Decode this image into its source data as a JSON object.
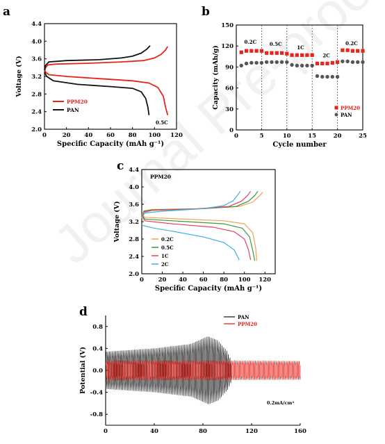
{
  "watermark": "Journal Pre-proofs",
  "chart_data": [
    {
      "panel": "a",
      "type": "line",
      "xlabel": "Specific Capacity (mAh g⁻¹)",
      "ylabel": "Voltage (V)",
      "xlim": [
        0,
        120
      ],
      "ylim": [
        2.0,
        4.4
      ],
      "xticks": [
        0,
        20,
        40,
        60,
        80,
        100,
        120
      ],
      "yticks": [
        2.0,
        2.4,
        2.8,
        3.2,
        3.6,
        4.0,
        4.4
      ],
      "annotation": "0.5C",
      "legend_position": "bottom-left",
      "series": [
        {
          "name": "PPM20",
          "color": "#e8231a",
          "charge": [
            [
              0,
              3.3
            ],
            [
              1,
              3.4
            ],
            [
              3,
              3.46
            ],
            [
              10,
              3.48
            ],
            [
              40,
              3.5
            ],
            [
              70,
              3.53
            ],
            [
              90,
              3.56
            ],
            [
              100,
              3.62
            ],
            [
              106,
              3.7
            ],
            [
              110,
              3.8
            ],
            [
              112,
              3.88
            ]
          ],
          "discharge": [
            [
              0,
              3.36
            ],
            [
              1,
              3.3
            ],
            [
              4,
              3.24
            ],
            [
              20,
              3.2
            ],
            [
              50,
              3.15
            ],
            [
              80,
              3.1
            ],
            [
              95,
              3.05
            ],
            [
              103,
              2.95
            ],
            [
              108,
              2.75
            ],
            [
              110,
              2.5
            ],
            [
              112,
              2.32
            ]
          ]
        },
        {
          "name": "PAN",
          "color": "#111111",
          "charge": [
            [
              0,
              3.34
            ],
            [
              1,
              3.45
            ],
            [
              4,
              3.53
            ],
            [
              20,
              3.56
            ],
            [
              50,
              3.58
            ],
            [
              70,
              3.62
            ],
            [
              80,
              3.66
            ],
            [
              88,
              3.73
            ],
            [
              93,
              3.82
            ],
            [
              96,
              3.9
            ]
          ],
          "discharge": [
            [
              0,
              3.3
            ],
            [
              2,
              3.2
            ],
            [
              8,
              3.1
            ],
            [
              30,
              3.02
            ],
            [
              60,
              2.97
            ],
            [
              80,
              2.93
            ],
            [
              88,
              2.85
            ],
            [
              92,
              2.7
            ],
            [
              94,
              2.5
            ],
            [
              95,
              2.32
            ]
          ]
        }
      ]
    },
    {
      "panel": "b",
      "type": "scatter",
      "xlabel": "Cycle number",
      "ylabel": "Capacity (mAh/g)",
      "xlim": [
        0,
        25
      ],
      "ylim": [
        0,
        150
      ],
      "xticks": [
        0,
        5,
        10,
        15,
        20,
        25
      ],
      "yticks": [
        0,
        30,
        60,
        90,
        120,
        150
      ],
      "rate_labels": [
        {
          "text": "0.2C",
          "x": 2.8,
          "y": 123
        },
        {
          "text": "0.5C",
          "x": 7.8,
          "y": 120
        },
        {
          "text": "1C",
          "x": 12.7,
          "y": 115
        },
        {
          "text": "2C",
          "x": 17.8,
          "y": 104
        },
        {
          "text": "0.2C",
          "x": 22.8,
          "y": 121
        }
      ],
      "dividers": [
        5,
        10,
        15,
        20
      ],
      "series": [
        {
          "name": "PPM20",
          "color": "#e8231a",
          "marker": "square",
          "x": [
            1,
            2,
            3,
            4,
            5,
            6,
            7,
            8,
            9,
            10,
            11,
            12,
            13,
            14,
            15,
            16,
            17,
            18,
            19,
            20,
            21,
            22,
            23,
            24,
            25
          ],
          "values": [
            111,
            113,
            113,
            113,
            113,
            110,
            110,
            110,
            110,
            109,
            107,
            107,
            107,
            107,
            107,
            95,
            95,
            95,
            96,
            97,
            114,
            114,
            113,
            113,
            113
          ]
        },
        {
          "name": "PAN",
          "color": "#555555",
          "marker": "circle",
          "x": [
            1,
            2,
            3,
            4,
            5,
            6,
            7,
            8,
            9,
            10,
            11,
            12,
            13,
            14,
            15,
            16,
            17,
            18,
            19,
            20,
            21,
            22,
            23,
            24,
            25
          ],
          "values": [
            92,
            95,
            96,
            96,
            96,
            97,
            97,
            97,
            97,
            97,
            93,
            92,
            92,
            92,
            92,
            77,
            76,
            76,
            76,
            76,
            98,
            98,
            97,
            97,
            97
          ]
        }
      ]
    },
    {
      "panel": "c",
      "type": "line",
      "title": "PPM20",
      "xlabel": "Specific Capacity (mAh g⁻¹)",
      "ylabel": "Voltage (V)",
      "xlim": [
        0,
        130
      ],
      "ylim": [
        2.0,
        4.4
      ],
      "xticks": [
        0,
        20,
        40,
        60,
        80,
        100,
        120
      ],
      "yticks": [
        2.0,
        2.4,
        2.8,
        3.2,
        3.6,
        4.0,
        4.4
      ],
      "legend_position": "bottom-left",
      "series": [
        {
          "name": "0.2C",
          "color": "#f0a050",
          "charge": [
            [
              0,
              3.28
            ],
            [
              2,
              3.45
            ],
            [
              10,
              3.48
            ],
            [
              60,
              3.5
            ],
            [
              95,
              3.55
            ],
            [
              108,
              3.65
            ],
            [
              114,
              3.78
            ],
            [
              118,
              3.88
            ]
          ],
          "discharge": [
            [
              0,
              3.38
            ],
            [
              3,
              3.3
            ],
            [
              30,
              3.27
            ],
            [
              80,
              3.22
            ],
            [
              100,
              3.15
            ],
            [
              108,
              2.95
            ],
            [
              111,
              2.6
            ],
            [
              112,
              2.3
            ]
          ]
        },
        {
          "name": "0.5C",
          "color": "#3a9a3a",
          "charge": [
            [
              0,
              3.3
            ],
            [
              2,
              3.44
            ],
            [
              10,
              3.47
            ],
            [
              60,
              3.5
            ],
            [
              92,
              3.55
            ],
            [
              104,
              3.67
            ],
            [
              110,
              3.8
            ],
            [
              113,
              3.9
            ]
          ],
          "discharge": [
            [
              0,
              3.36
            ],
            [
              3,
              3.26
            ],
            [
              30,
              3.22
            ],
            [
              80,
              3.15
            ],
            [
              98,
              3.05
            ],
            [
              105,
              2.85
            ],
            [
              108,
              2.55
            ],
            [
              110,
              2.3
            ]
          ]
        },
        {
          "name": "1C",
          "color": "#e84060",
          "charge": [
            [
              0,
              3.3
            ],
            [
              2,
              3.42
            ],
            [
              10,
              3.46
            ],
            [
              50,
              3.49
            ],
            [
              85,
              3.55
            ],
            [
              97,
              3.67
            ],
            [
              103,
              3.8
            ],
            [
              106,
              3.9
            ]
          ],
          "discharge": [
            [
              0,
              3.34
            ],
            [
              3,
              3.22
            ],
            [
              30,
              3.15
            ],
            [
              70,
              3.07
            ],
            [
              90,
              2.97
            ],
            [
              100,
              2.8
            ],
            [
              104,
              2.55
            ],
            [
              106,
              2.32
            ]
          ]
        },
        {
          "name": "2C",
          "color": "#3ab0e0",
          "charge": [
            [
              0,
              3.3
            ],
            [
              3,
              3.4
            ],
            [
              20,
              3.44
            ],
            [
              60,
              3.5
            ],
            [
              80,
              3.57
            ],
            [
              89,
              3.68
            ],
            [
              93,
              3.8
            ],
            [
              96,
              3.9
            ]
          ],
          "discharge": [
            [
              0,
              3.12
            ],
            [
              10,
              3.06
            ],
            [
              30,
              2.98
            ],
            [
              60,
              2.85
            ],
            [
              80,
              2.72
            ],
            [
              90,
              2.55
            ],
            [
              95,
              2.32
            ]
          ]
        }
      ]
    },
    {
      "panel": "d",
      "type": "line",
      "ylabel": "Potential (V)",
      "xlim": [
        0,
        160
      ],
      "ylim": [
        -1.0,
        1.0
      ],
      "xticks": [
        0,
        40,
        80,
        120,
        160
      ],
      "yticks": [
        -0.8,
        -0.4,
        0.0,
        0.4,
        0.8
      ],
      "annotation": "0.2mA/cm²",
      "legend_position": "top-right",
      "series": [
        {
          "name": "PAN",
          "color": "#222222",
          "cycles": 80,
          "x_end": 103,
          "amplitude_envelope": [
            [
              0,
              0.34
            ],
            [
              40,
              0.4
            ],
            [
              70,
              0.48
            ],
            [
              84,
              0.62
            ],
            [
              92,
              0.55
            ],
            [
              100,
              0.35
            ],
            [
              103,
              0.2
            ]
          ]
        },
        {
          "name": "PPM20",
          "color": "#e8231a",
          "cycles": 120,
          "x_end": 160,
          "amplitude_envelope": [
            [
              0,
              0.18
            ],
            [
              80,
              0.18
            ],
            [
              160,
              0.17
            ]
          ]
        }
      ]
    }
  ]
}
